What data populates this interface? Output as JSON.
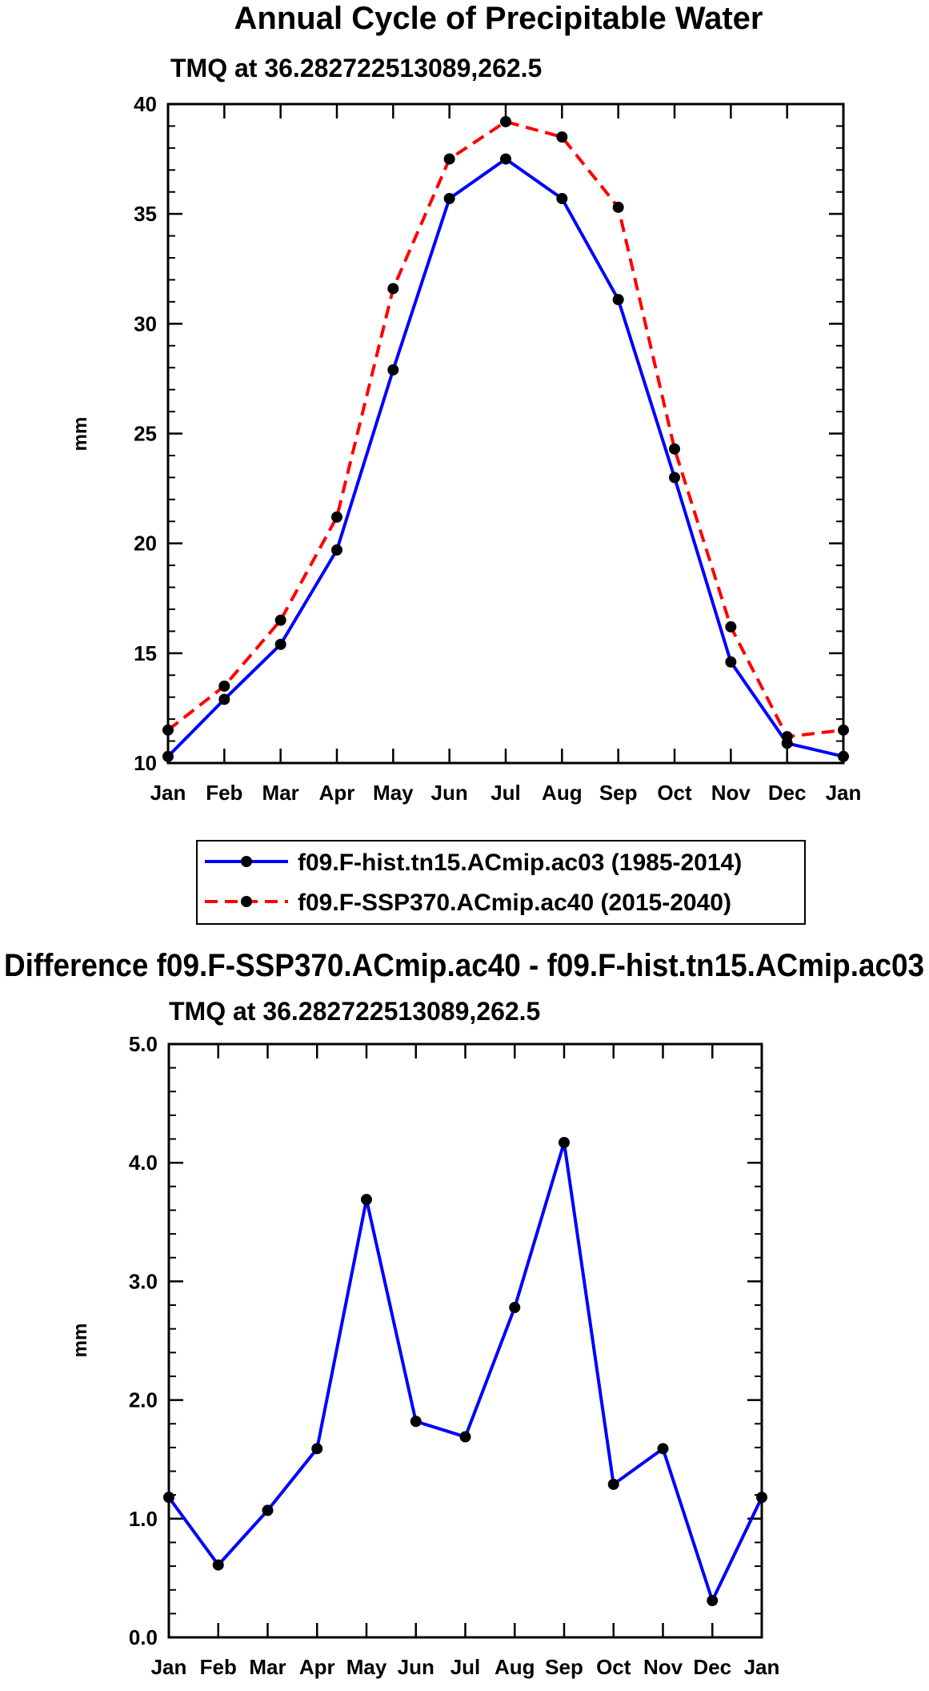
{
  "chart_data": [
    {
      "type": "line",
      "title": "Annual Cycle of Precipitable Water",
      "subtitle": "TMQ at 36.282722513089,262.5",
      "ylabel": "mm",
      "xlabel": "",
      "categories": [
        "Jan",
        "Feb",
        "Mar",
        "Apr",
        "May",
        "Jun",
        "Jul",
        "Aug",
        "Sep",
        "Oct",
        "Nov",
        "Dec",
        "Jan"
      ],
      "ylim": [
        10,
        40
      ],
      "yticks": [
        10,
        15,
        20,
        25,
        30,
        35,
        40
      ],
      "ytick_labels": [
        "10",
        "15",
        "20",
        "25",
        "30",
        "35",
        "40"
      ],
      "grid": false,
      "legend_position": "bottom",
      "series": [
        {
          "name": "f09.F-hist.tn15.ACmip.ac03 (1985-2014)",
          "color": "#0000ff",
          "line_style": "solid",
          "values": [
            10.3,
            12.9,
            15.4,
            19.7,
            27.9,
            35.7,
            37.5,
            35.7,
            31.1,
            23.0,
            14.6,
            10.9,
            10.3
          ]
        },
        {
          "name": "f09.F-SSP370.ACmip.ac40 (2015-2040)",
          "color": "#ff0000",
          "line_style": "dashed",
          "values": [
            11.5,
            13.5,
            16.5,
            21.2,
            31.6,
            37.5,
            39.2,
            38.5,
            35.3,
            24.3,
            16.2,
            11.2,
            11.5
          ]
        }
      ]
    },
    {
      "type": "line",
      "title": "Difference f09.F-SSP370.ACmip.ac40 - f09.F-hist.tn15.ACmip.ac03",
      "subtitle": "TMQ at 36.282722513089,262.5",
      "ylabel": "mm",
      "xlabel": "",
      "categories": [
        "Jan",
        "Feb",
        "Mar",
        "Apr",
        "May",
        "Jun",
        "Jul",
        "Aug",
        "Sep",
        "Oct",
        "Nov",
        "Dec",
        "Jan"
      ],
      "ylim": [
        0,
        5
      ],
      "yticks": [
        0,
        1,
        2,
        3,
        4,
        5
      ],
      "ytick_labels": [
        "0.0",
        "1.0",
        "2.0",
        "3.0",
        "4.0",
        "5.0"
      ],
      "grid": false,
      "series": [
        {
          "name": "Difference",
          "color": "#0000ff",
          "line_style": "solid",
          "values": [
            1.18,
            0.61,
            1.07,
            1.59,
            3.69,
            1.82,
            1.69,
            2.78,
            4.17,
            1.29,
            1.59,
            0.31,
            1.18
          ]
        }
      ]
    }
  ]
}
